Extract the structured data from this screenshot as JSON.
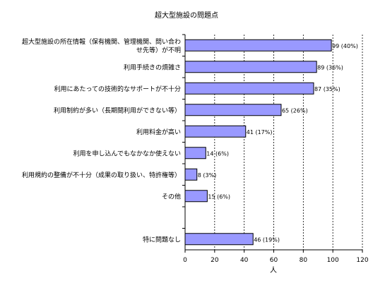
{
  "chart_data": {
    "type": "bar",
    "orientation": "horizontal",
    "title": "超大型施設の問題点",
    "xlabel": "人",
    "ylabel": "",
    "xlim": [
      0,
      120
    ],
    "x_ticks": [
      "0",
      "20",
      "40",
      "60",
      "80",
      "100",
      "120"
    ],
    "grid": "vertical dashed",
    "legend": "none",
    "bar_color": "#9999ff",
    "categories": [
      [
        "超大型施設の所在情報（保有機関、管理機関、問い合わ",
        "せ先等）が不明"
      ],
      [
        "利用手続きの煩雑さ"
      ],
      [
        "利用にあたっての技術的なサポートが不十分"
      ],
      [
        "利用制約が多い（長期間利用ができない等）"
      ],
      [
        "利用料金が高い"
      ],
      [
        "利用を申し込んでもなかなか使えない"
      ],
      [
        "利用規約の整備が不十分（成果の取り扱い、特許権等）"
      ],
      [
        "その他"
      ],
      [
        ""
      ],
      [
        "特に問題なし"
      ]
    ],
    "values": [
      99,
      89,
      87,
      65,
      41,
      14,
      8,
      15,
      null,
      46
    ],
    "data_labels": [
      "99 (40%)",
      "89 (36%)",
      "87 (35%)",
      "65 (26%)",
      "41 (17%)",
      "14 (6%)",
      "8 (3%)",
      "15 (6%)",
      "",
      "46 (19%)"
    ]
  }
}
